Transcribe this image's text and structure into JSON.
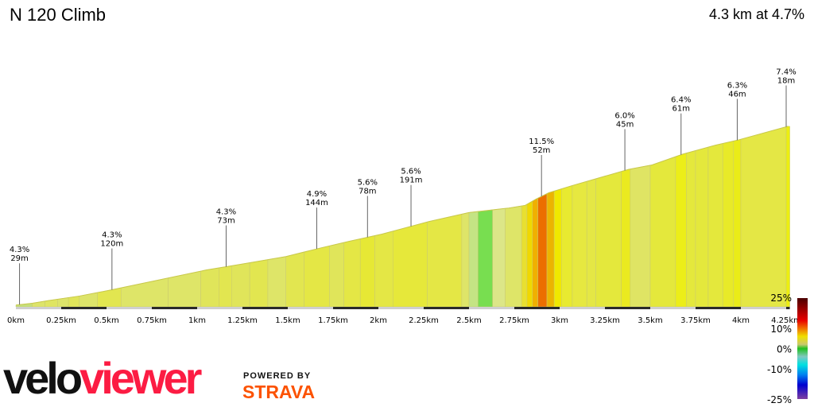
{
  "header": {
    "title": "N 120 Climb",
    "summary": "4.3 km at 4.7%"
  },
  "colors": {
    "line": "#c8c84a",
    "bar_dark": "#2a2a2a",
    "bar_light": "#cfcfcf",
    "logo_red": "#fc1c43",
    "strava_orange": "#fc5200"
  },
  "chart_data": {
    "type": "area",
    "xlabel": "",
    "ylabel": "",
    "xlim": [
      0,
      4.27
    ],
    "x_ticks": [
      {
        "v": 0,
        "label": "0km"
      },
      {
        "v": 0.25,
        "label": "0.25km"
      },
      {
        "v": 0.5,
        "label": "0.5km"
      },
      {
        "v": 0.75,
        "label": "0.75km"
      },
      {
        "v": 1,
        "label": "1km"
      },
      {
        "v": 1.25,
        "label": "1.25km"
      },
      {
        "v": 1.5,
        "label": "1.5km"
      },
      {
        "v": 1.75,
        "label": "1.75km"
      },
      {
        "v": 2,
        "label": "2km"
      },
      {
        "v": 2.25,
        "label": "2.25km"
      },
      {
        "v": 2.5,
        "label": "2.5km"
      },
      {
        "v": 2.75,
        "label": "2.75km"
      },
      {
        "v": 3,
        "label": "3km"
      },
      {
        "v": 3.25,
        "label": "3.25km"
      },
      {
        "v": 3.5,
        "label": "3.5km"
      },
      {
        "v": 3.75,
        "label": "3.75km"
      },
      {
        "v": 4,
        "label": "4km"
      },
      {
        "v": 4.25,
        "label": "4.25km"
      }
    ],
    "profile_km": [
      0,
      0.09,
      0.18,
      0.35,
      0.53,
      0.79,
      1.05,
      1.23,
      1.49,
      1.67,
      1.84,
      2.02,
      2.28,
      2.5,
      2.63,
      2.72,
      2.81,
      2.87,
      2.94,
      3.07,
      3.38,
      3.51,
      3.68,
      3.86,
      3.99,
      4.26
    ],
    "profile_elev_gain_m": [
      2,
      4,
      7,
      12,
      19,
      30,
      41,
      47,
      56,
      65,
      73,
      81,
      95,
      105,
      108,
      110,
      113,
      120,
      127,
      135,
      153,
      158,
      170,
      180,
      186,
      201
    ],
    "segment_breaks_km": [
      0,
      0.09,
      0.16,
      0.23,
      0.29,
      0.35,
      0.45,
      0.58,
      0.84,
      1.02,
      1.12,
      1.19,
      1.29,
      1.39,
      1.49,
      1.59,
      1.73,
      1.81,
      1.9,
      1.98,
      2.08,
      2.27,
      2.46,
      2.5,
      2.55,
      2.63,
      2.7,
      2.79,
      2.82,
      2.85,
      2.88,
      2.93,
      2.97,
      3.01,
      3.07,
      3.15,
      3.2,
      3.34,
      3.39,
      3.5,
      3.64,
      3.7,
      3.75,
      3.82,
      3.9,
      3.96,
      4.0,
      4.25,
      4.27
    ],
    "segment_colors": [
      "#c5df7a",
      "#dde46a",
      "#dfe562",
      "#dde46a",
      "#e0e55a",
      "#dde46a",
      "#e2e650",
      "#dee568",
      "#dee568",
      "#e0e55a",
      "#e2e650",
      "#e0e55a",
      "#e2e650",
      "#dee568",
      "#e2e650",
      "#e4e745",
      "#e0e55a",
      "#e4e745",
      "#e6e835",
      "#e4e745",
      "#e6e83a",
      "#e4e745",
      "#dee568",
      "#c4e484",
      "#78de50",
      "#dce688",
      "#dee568",
      "#e8e030",
      "#f0d800",
      "#f0b000",
      "#ec6e00",
      "#ecb400",
      "#f0e800",
      "#e8ea30",
      "#e6e840",
      "#e4e745",
      "#e4e83c",
      "#eaea20",
      "#dfe464",
      "#e4e83c",
      "#ecee18",
      "#e4e83c",
      "#e4e83c",
      "#e4e83c",
      "#e8ea28",
      "#eaec18",
      "#e4e745",
      "#ecee10"
    ],
    "annotations": [
      {
        "km": 0.02,
        "grade": "4.3%",
        "length": "29m"
      },
      {
        "km": 0.53,
        "grade": "4.3%",
        "length": "120m"
      },
      {
        "km": 1.16,
        "grade": "4.3%",
        "length": "73m"
      },
      {
        "km": 1.66,
        "grade": "4.9%",
        "length": "144m"
      },
      {
        "km": 1.94,
        "grade": "5.6%",
        "length": "78m"
      },
      {
        "km": 2.18,
        "grade": "5.6%",
        "length": "191m"
      },
      {
        "km": 2.9,
        "grade": "11.5%",
        "length": "52m"
      },
      {
        "km": 3.36,
        "grade": "6.0%",
        "length": "45m"
      },
      {
        "km": 3.67,
        "grade": "6.4%",
        "length": "61m"
      },
      {
        "km": 3.98,
        "grade": "6.3%",
        "length": "46m"
      },
      {
        "km": 4.25,
        "grade": "7.4%",
        "length": "18m"
      }
    ],
    "gradient_legend": {
      "max_label": "25%",
      "labels": [
        {
          "v": 10,
          "label": "10%"
        },
        {
          "v": 0,
          "label": "0%"
        },
        {
          "v": -10,
          "label": "-10%"
        },
        {
          "v": -25,
          "label": "-25%"
        }
      ],
      "stops": [
        {
          "v": 25,
          "color": "#4a0000"
        },
        {
          "v": 18,
          "color": "#b00000"
        },
        {
          "v": 14,
          "color": "#e80000"
        },
        {
          "v": 10,
          "color": "#f07000"
        },
        {
          "v": 6,
          "color": "#f0e000"
        },
        {
          "v": 2,
          "color": "#c8c870"
        },
        {
          "v": 0,
          "color": "#20c020"
        },
        {
          "v": -4,
          "color": "#80c8c0"
        },
        {
          "v": -8,
          "color": "#00e0e0"
        },
        {
          "v": -13,
          "color": "#0080f0"
        },
        {
          "v": -18,
          "color": "#0000d0"
        },
        {
          "v": -25,
          "color": "#8040a0"
        }
      ]
    }
  },
  "footer": {
    "logo_velo": "velo",
    "logo_viewer": "viewer",
    "powered_by": "POWERED BY",
    "strava": "STRAVA"
  }
}
